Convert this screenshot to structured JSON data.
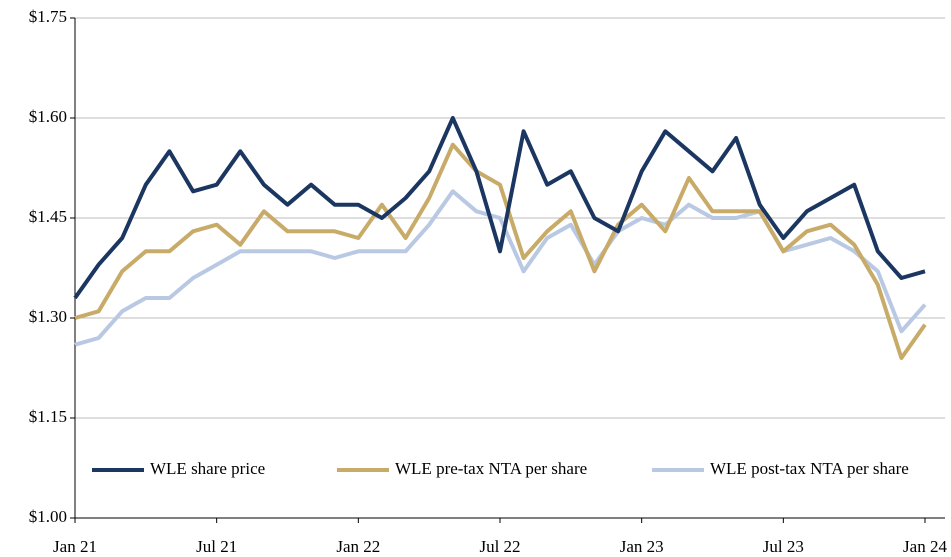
{
  "chart_data": {
    "type": "line",
    "categories": [
      "Jan 21",
      null,
      null,
      null,
      null,
      null,
      "Jul 21",
      null,
      null,
      null,
      null,
      null,
      "Jan 22",
      null,
      null,
      null,
      null,
      null,
      "Jul 22",
      null,
      null,
      null,
      null,
      null,
      "Jan 23",
      null,
      null,
      null,
      null,
      null,
      "Jul 23",
      null,
      null,
      null,
      null,
      null,
      "Jan 24"
    ],
    "series": [
      {
        "name": "WLE share price",
        "color": "#1b3660",
        "values": [
          1.33,
          1.38,
          1.42,
          1.5,
          1.55,
          1.49,
          1.5,
          1.55,
          1.5,
          1.47,
          1.5,
          1.47,
          1.47,
          1.45,
          1.48,
          1.52,
          1.6,
          1.52,
          1.4,
          1.58,
          1.5,
          1.52,
          1.45,
          1.43,
          1.52,
          1.58,
          1.55,
          1.52,
          1.57,
          1.47,
          1.42,
          1.46,
          1.48,
          1.5,
          1.4,
          1.36,
          1.37
        ]
      },
      {
        "name": "WLE pre-tax NTA per share",
        "color": "#c8ab68",
        "values": [
          1.3,
          1.31,
          1.37,
          1.4,
          1.4,
          1.43,
          1.44,
          1.41,
          1.46,
          1.43,
          1.43,
          1.43,
          1.42,
          1.47,
          1.42,
          1.48,
          1.56,
          1.52,
          1.5,
          1.39,
          1.43,
          1.46,
          1.37,
          1.44,
          1.47,
          1.43,
          1.51,
          1.46,
          1.46,
          1.46,
          1.4,
          1.43,
          1.44,
          1.41,
          1.35,
          1.24,
          1.29
        ]
      },
      {
        "name": "WLE post-tax NTA per share",
        "color": "#b9c9e4",
        "values": [
          1.26,
          1.27,
          1.31,
          1.33,
          1.33,
          1.36,
          1.38,
          1.4,
          1.4,
          1.4,
          1.4,
          1.39,
          1.4,
          1.4,
          1.4,
          1.44,
          1.49,
          1.46,
          1.45,
          1.37,
          1.42,
          1.44,
          1.38,
          1.43,
          1.45,
          1.44,
          1.47,
          1.45,
          1.45,
          1.46,
          1.4,
          1.41,
          1.42,
          1.4,
          1.37,
          1.28,
          1.32
        ]
      }
    ],
    "ylim": [
      1.0,
      1.75
    ],
    "yticks": [
      {
        "value": 1.0,
        "label": "$1.00"
      },
      {
        "value": 1.15,
        "label": "$1.15"
      },
      {
        "value": 1.3,
        "label": "$1.30"
      },
      {
        "value": 1.45,
        "label": "$1.45"
      },
      {
        "value": 1.6,
        "label": "$1.60"
      },
      {
        "value": 1.75,
        "label": "$1.75"
      }
    ],
    "grid": true,
    "legend": "lower center"
  }
}
